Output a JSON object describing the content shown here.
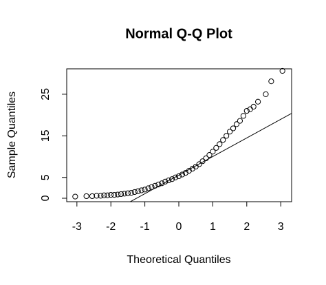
{
  "chart_data": {
    "type": "scatter",
    "title": "Normal Q-Q Plot",
    "x_label": "Theoretical Quantiles",
    "y_label": "Sample Quantiles",
    "x": [
      -3.05,
      -2.72,
      -2.55,
      -2.42,
      -2.3,
      -2.2,
      -2.1,
      -2.0,
      -1.9,
      -1.8,
      -1.7,
      -1.6,
      -1.5,
      -1.4,
      -1.3,
      -1.2,
      -1.1,
      -1.0,
      -0.9,
      -0.8,
      -0.7,
      -0.6,
      -0.5,
      -0.4,
      -0.3,
      -0.2,
      -0.1,
      0,
      0.1,
      0.2,
      0.3,
      0.4,
      0.5,
      0.6,
      0.7,
      0.8,
      0.9,
      1.0,
      1.1,
      1.2,
      1.3,
      1.4,
      1.5,
      1.6,
      1.7,
      1.8,
      1.9,
      2.0,
      2.1,
      2.2,
      2.33,
      2.56,
      2.72,
      3.05
    ],
    "values": [
      0.4,
      0.5,
      0.5,
      0.6,
      0.6,
      0.7,
      0.7,
      0.8,
      0.8,
      0.9,
      1.0,
      1.1,
      1.2,
      1.3,
      1.5,
      1.7,
      1.9,
      2.1,
      2.4,
      2.7,
      3.0,
      3.3,
      3.6,
      4.0,
      4.3,
      4.6,
      5.0,
      5.3,
      5.7,
      6.1,
      6.6,
      7.1,
      7.6,
      8.2,
      8.9,
      9.6,
      10.4,
      11.2,
      12.1,
      13.0,
      14.0,
      15.0,
      16.0,
      16.8,
      17.8,
      18.6,
      19.8,
      21.0,
      21.4,
      22.0,
      23.2,
      25.0,
      28.1,
      30.6
    ],
    "color": "#000000",
    "reference_line": {
      "intercept": 5.56,
      "slope": 4.47
    },
    "xlim": [
      -3.3,
      3.32
    ],
    "xticks": [
      -3,
      -2,
      -1,
      0,
      1,
      2,
      3
    ],
    "ylim": [
      -0.83,
      31.1
    ],
    "yticks": [
      0,
      5,
      15,
      25
    ]
  }
}
